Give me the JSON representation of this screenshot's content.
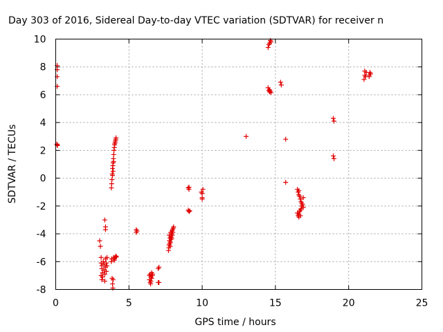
{
  "chart_data": {
    "type": "scatter",
    "title": "Day 303 of 2016, Sidereal Day-to-day VTEC variation (SDTVAR) for receiver n",
    "xlabel": "GPS time / hours",
    "ylabel": "SDTVAR / TECUs",
    "xlim": [
      0,
      25
    ],
    "ylim": [
      -8,
      10
    ],
    "xticks": [
      "0",
      "5",
      "10",
      "15",
      "20",
      "25"
    ],
    "yticks": [
      "-8",
      "-6",
      "-4",
      "-2",
      "0",
      "2",
      "4",
      "6",
      "8",
      "10"
    ],
    "grid": true,
    "marker": "plus",
    "color": "#e00000",
    "series": [
      {
        "points": [
          [
            0.1,
            8.1
          ],
          [
            0.1,
            7.8
          ],
          [
            0.1,
            7.3
          ],
          [
            0.1,
            6.6
          ],
          [
            0.1,
            2.4
          ],
          [
            0.12,
            2.35
          ],
          [
            0.08,
            2.45
          ],
          [
            3.0,
            -4.5
          ],
          [
            3.05,
            -4.9
          ],
          [
            3.1,
            -5.7
          ],
          [
            3.1,
            -6.1
          ],
          [
            3.15,
            -6.3
          ],
          [
            3.15,
            -6.5
          ],
          [
            3.2,
            -6.8
          ],
          [
            3.1,
            -7.0
          ],
          [
            3.15,
            -7.3
          ],
          [
            3.2,
            -7.1
          ],
          [
            3.25,
            -6.0
          ],
          [
            3.3,
            -6.2
          ],
          [
            3.3,
            -6.6
          ],
          [
            3.35,
            -6.9
          ],
          [
            3.35,
            -7.4
          ],
          [
            3.4,
            -5.8
          ],
          [
            3.4,
            -6.4
          ],
          [
            3.45,
            -6.1
          ],
          [
            3.45,
            -6.7
          ],
          [
            3.5,
            -5.7
          ],
          [
            3.5,
            -6.3
          ],
          [
            3.35,
            -3.0
          ],
          [
            3.4,
            -3.5
          ],
          [
            3.4,
            -3.7
          ],
          [
            3.8,
            -6.0
          ],
          [
            3.82,
            -5.8
          ],
          [
            3.85,
            -7.2
          ],
          [
            3.88,
            -7.6
          ],
          [
            3.9,
            -7.9
          ],
          [
            3.92,
            -7.3
          ],
          [
            3.95,
            -5.7
          ],
          [
            4.0,
            -5.9
          ],
          [
            4.05,
            -5.7
          ],
          [
            4.1,
            -5.6
          ],
          [
            4.15,
            -5.65
          ],
          [
            3.98,
            -5.8
          ],
          [
            3.8,
            -0.7
          ],
          [
            3.82,
            -0.4
          ],
          [
            3.84,
            -0.1
          ],
          [
            3.86,
            0.3
          ],
          [
            3.88,
            0.7
          ],
          [
            3.9,
            0.9
          ],
          [
            3.92,
            1.1
          ],
          [
            3.94,
            1.4
          ],
          [
            3.96,
            1.7
          ],
          [
            3.98,
            2.0
          ],
          [
            4.0,
            2.2
          ],
          [
            4.02,
            2.4
          ],
          [
            4.04,
            2.5
          ],
          [
            4.06,
            2.6
          ],
          [
            4.08,
            2.7
          ],
          [
            4.1,
            2.8
          ],
          [
            4.12,
            2.9
          ],
          [
            3.88,
            0.2
          ],
          [
            3.92,
            0.5
          ],
          [
            3.95,
            1.2
          ],
          [
            5.5,
            -3.7
          ],
          [
            5.55,
            -3.8
          ],
          [
            5.5,
            -3.9
          ],
          [
            6.4,
            -7.0
          ],
          [
            6.4,
            -7.3
          ],
          [
            6.45,
            -7.5
          ],
          [
            6.45,
            -6.9
          ],
          [
            6.5,
            -7.1
          ],
          [
            6.5,
            -7.4
          ],
          [
            6.55,
            -6.8
          ],
          [
            6.55,
            -7.2
          ],
          [
            6.6,
            -7.0
          ],
          [
            6.6,
            -6.9
          ],
          [
            6.48,
            -7.6
          ],
          [
            7.0,
            -6.5
          ],
          [
            7.05,
            -6.4
          ],
          [
            7.0,
            -7.5
          ],
          [
            7.05,
            -7.5
          ],
          [
            7.7,
            -5.2
          ],
          [
            7.72,
            -5.0
          ],
          [
            7.74,
            -4.8
          ],
          [
            7.76,
            -4.5
          ],
          [
            7.78,
            -4.7
          ],
          [
            7.8,
            -4.3
          ],
          [
            7.82,
            -4.9
          ],
          [
            7.84,
            -4.6
          ],
          [
            7.86,
            -4.2
          ],
          [
            7.88,
            -4.4
          ],
          [
            7.9,
            -4.0
          ],
          [
            7.92,
            -4.3
          ],
          [
            7.94,
            -3.8
          ],
          [
            7.96,
            -4.1
          ],
          [
            7.98,
            -3.7
          ],
          [
            8.0,
            -3.9
          ],
          [
            8.02,
            -3.6
          ],
          [
            8.05,
            -3.5
          ],
          [
            7.75,
            -4.1
          ],
          [
            7.85,
            -3.9
          ],
          [
            9.05,
            -0.7
          ],
          [
            9.1,
            -0.8
          ],
          [
            9.1,
            -0.65
          ],
          [
            9.05,
            -2.3
          ],
          [
            9.1,
            -2.4
          ],
          [
            9.15,
            -2.35
          ],
          [
            9.95,
            -1.0
          ],
          [
            10.0,
            -1.1
          ],
          [
            10.05,
            -0.8
          ],
          [
            10.0,
            -1.4
          ],
          [
            10.0,
            -1.5
          ],
          [
            13.0,
            3.0
          ],
          [
            14.5,
            9.4
          ],
          [
            14.55,
            9.6
          ],
          [
            14.6,
            9.7
          ],
          [
            14.65,
            9.9
          ],
          [
            14.7,
            9.8
          ],
          [
            14.5,
            6.5
          ],
          [
            14.55,
            6.3
          ],
          [
            14.6,
            6.2
          ],
          [
            14.65,
            6.25
          ],
          [
            14.7,
            6.15
          ],
          [
            14.6,
            6.35
          ],
          [
            15.35,
            6.9
          ],
          [
            15.4,
            6.7
          ],
          [
            15.7,
            2.8
          ],
          [
            15.7,
            -0.3
          ],
          [
            16.5,
            -0.8
          ],
          [
            16.55,
            -1.0
          ],
          [
            16.6,
            -0.9
          ],
          [
            16.6,
            -1.2
          ],
          [
            16.65,
            -1.3
          ],
          [
            16.7,
            -1.5
          ],
          [
            16.75,
            -1.7
          ],
          [
            16.8,
            -1.8
          ],
          [
            16.5,
            -2.5
          ],
          [
            16.55,
            -2.7
          ],
          [
            16.6,
            -2.6
          ],
          [
            16.65,
            -2.4
          ],
          [
            16.7,
            -2.3
          ],
          [
            16.75,
            -2.2
          ],
          [
            16.8,
            -2.0
          ],
          [
            16.85,
            -1.9
          ],
          [
            16.9,
            -1.4
          ],
          [
            16.9,
            -2.1
          ],
          [
            16.6,
            -2.8
          ],
          [
            16.7,
            -2.7
          ],
          [
            18.95,
            4.3
          ],
          [
            19.0,
            4.1
          ],
          [
            18.95,
            1.6
          ],
          [
            19.0,
            1.4
          ],
          [
            21.05,
            7.1
          ],
          [
            21.1,
            7.4
          ],
          [
            21.1,
            7.7
          ],
          [
            21.15,
            7.3
          ],
          [
            21.2,
            7.6
          ],
          [
            21.4,
            7.4
          ],
          [
            21.45,
            7.6
          ],
          [
            21.5,
            7.5
          ],
          [
            21.4,
            7.3
          ]
        ]
      }
    ]
  }
}
